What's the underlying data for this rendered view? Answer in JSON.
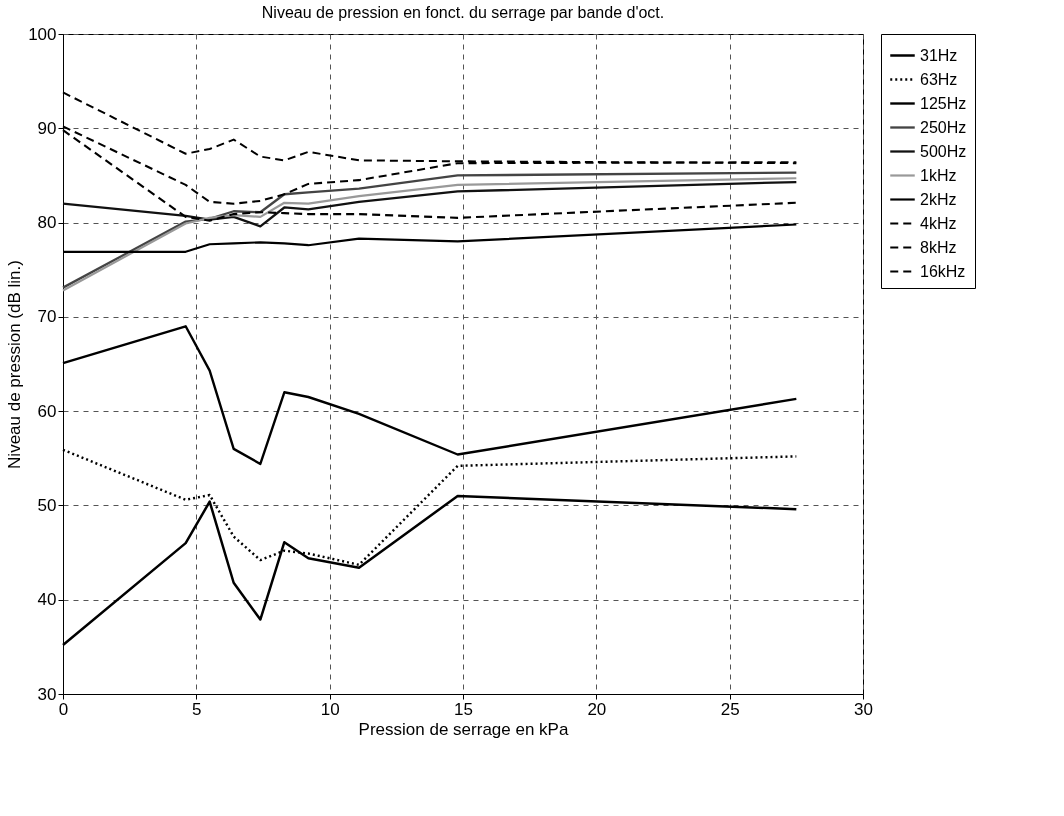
{
  "chart_data": {
    "type": "line",
    "title": "Niveau de pression en fonct. du serrage par bande d'oct.",
    "xlabel": "Pression de serrage en kPa",
    "ylabel": "Niveau de pression (dB lin.)",
    "x": [
      0,
      4.6,
      5.5,
      6.4,
      7.4,
      8.3,
      9.2,
      11.1,
      14.8,
      27.5
    ],
    "xlim": [
      0,
      30
    ],
    "xticks": [
      0,
      5,
      10,
      15,
      20,
      25,
      30
    ],
    "ylim": [
      30,
      100
    ],
    "yticks": [
      30,
      40,
      50,
      60,
      70,
      80,
      90,
      100
    ],
    "grid": true,
    "legend": "top right",
    "marker": "none",
    "series": [
      {
        "name": "31Hz",
        "color": "#000000",
        "line_style": "solid",
        "values": [
          35.2,
          46.0,
          50.4,
          41.8,
          37.9,
          46.1,
          44.4,
          43.4,
          51.0,
          49.6
        ]
      },
      {
        "name": "63Hz",
        "color": "#000000",
        "line_style": "dotted",
        "values": [
          55.9,
          50.6,
          51.1,
          46.7,
          44.2,
          45.2,
          44.9,
          43.7,
          54.2,
          55.2
        ]
      },
      {
        "name": "125Hz",
        "color": "#000000",
        "line_style": "solid",
        "values": [
          65.1,
          69.0,
          64.3,
          56.0,
          54.4,
          62.0,
          61.5,
          59.7,
          55.4,
          61.3
        ]
      },
      {
        "name": "250Hz",
        "color": "#444444",
        "line_style": "solid",
        "values": [
          73.1,
          80.1,
          80.4,
          81.2,
          81.1,
          83.0,
          83.2,
          83.6,
          85.0,
          85.3
        ]
      },
      {
        "name": "500Hz",
        "color": "#111111",
        "line_style": "solid",
        "values": [
          82.0,
          80.7,
          80.3,
          80.6,
          79.6,
          81.6,
          81.4,
          82.2,
          83.3,
          84.3
        ]
      },
      {
        "name": "1kHz",
        "color": "#999999",
        "line_style": "solid",
        "values": [
          72.8,
          79.9,
          80.5,
          80.8,
          80.6,
          82.1,
          82.0,
          82.8,
          84.0,
          84.7
        ]
      },
      {
        "name": "2kHz",
        "color": "#000000",
        "line_style": "solid",
        "values": [
          76.9,
          76.9,
          77.7,
          77.8,
          77.9,
          77.8,
          77.6,
          78.3,
          78.0,
          79.8
        ]
      },
      {
        "name": "4kHz",
        "color": "#000000",
        "line_style": "dashed",
        "values": [
          89.8,
          80.6,
          80.2,
          80.9,
          81.1,
          81.0,
          80.9,
          80.9,
          80.5,
          82.1
        ]
      },
      {
        "name": "8kHz",
        "color": "#000000",
        "line_style": "dashed",
        "values": [
          90.2,
          84.0,
          82.2,
          82.0,
          82.3,
          83.0,
          84.1,
          84.5,
          86.3,
          86.4
        ]
      },
      {
        "name": "16kHz",
        "color": "#000000",
        "line_style": "dashed",
        "values": [
          93.8,
          87.3,
          87.8,
          88.8,
          87.0,
          86.6,
          87.5,
          86.6,
          86.5,
          86.3
        ]
      }
    ]
  }
}
